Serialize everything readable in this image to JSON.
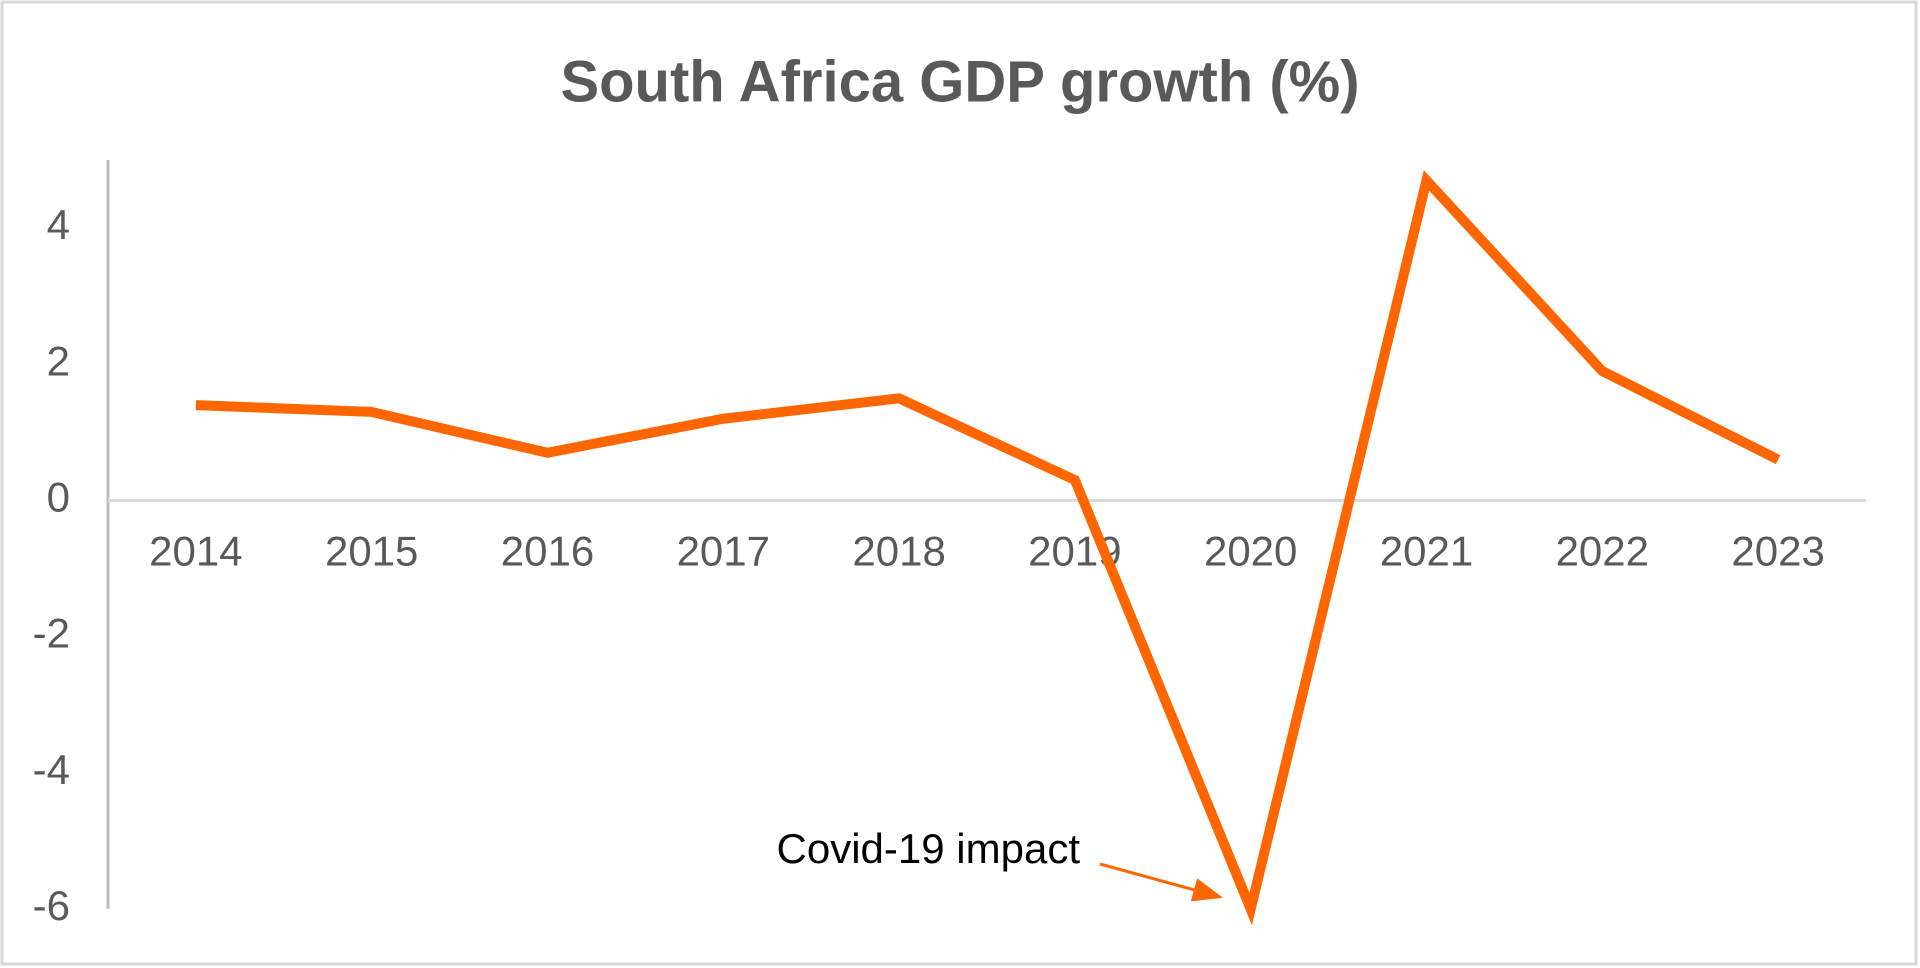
{
  "chart_data": {
    "type": "line",
    "title": "South Africa GDP growth (%)",
    "categories": [
      "2014",
      "2015",
      "2016",
      "2017",
      "2018",
      "2019",
      "2020",
      "2021",
      "2022",
      "2023"
    ],
    "values": [
      1.4,
      1.3,
      0.7,
      1.2,
      1.5,
      0.3,
      -6.0,
      4.7,
      1.9,
      0.6
    ],
    "color": "#ff6600",
    "ylim": [
      -6,
      5
    ],
    "yticks": [
      -6,
      -4,
      -2,
      0,
      2,
      4
    ],
    "grid": false,
    "annotation": "Covid-19 impact"
  }
}
